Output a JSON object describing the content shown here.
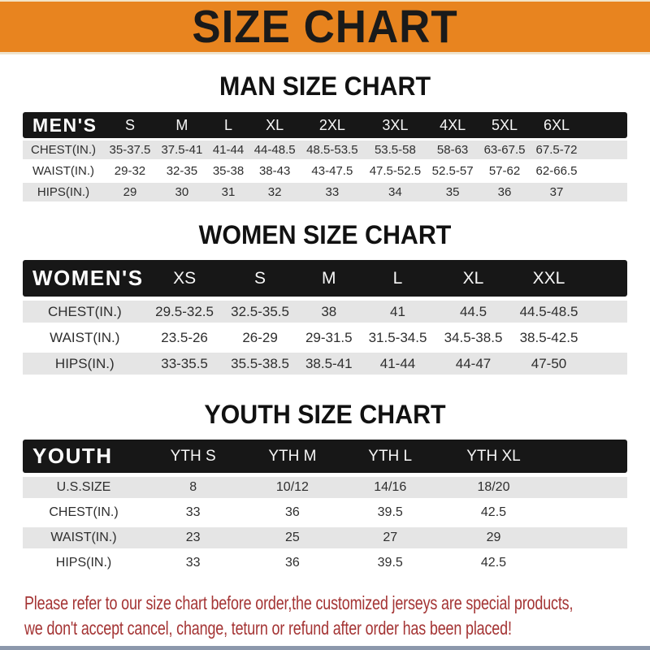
{
  "banner": {
    "title": "SIZE CHART",
    "background_color": "#E8841F",
    "title_color": "#1A1A1A"
  },
  "sections": [
    {
      "heading": "MAN SIZE CHART",
      "header_label": "MEN'S",
      "columns": [
        "S",
        "M",
        "L",
        "XL",
        "2XL",
        "3XL",
        "4XL",
        "5XL",
        "6XL"
      ],
      "rows": [
        {
          "label": "CHEST(IN.)",
          "values": [
            "35-37.5",
            "37.5-41",
            "41-44",
            "44-48.5",
            "48.5-53.5",
            "53.5-58",
            "58-63",
            "63-67.5",
            "67.5-72"
          ]
        },
        {
          "label": "WAIST(IN.)",
          "values": [
            "29-32",
            "32-35",
            "35-38",
            "38-43",
            "43-47.5",
            "47.5-52.5",
            "52.5-57",
            "57-62",
            "62-66.5"
          ]
        },
        {
          "label": "HIPS(IN.)",
          "values": [
            "29",
            "30",
            "31",
            "32",
            "33",
            "34",
            "35",
            "36",
            "37"
          ]
        }
      ]
    },
    {
      "heading": "WOMEN SIZE CHART",
      "header_label": "WOMEN'S",
      "columns": [
        "XS",
        "S",
        "M",
        "L",
        "XL",
        "XXL"
      ],
      "rows": [
        {
          "label": "CHEST(IN.)",
          "values": [
            "29.5-32.5",
            "32.5-35.5",
            "38",
            "41",
            "44.5",
            "44.5-48.5"
          ]
        },
        {
          "label": "WAIST(IN.)",
          "values": [
            "23.5-26",
            "26-29",
            "29-31.5",
            "31.5-34.5",
            "34.5-38.5",
            "38.5-42.5"
          ]
        },
        {
          "label": "HIPS(IN.)",
          "values": [
            "33-35.5",
            "35.5-38.5",
            "38.5-41",
            "41-44",
            "44-47",
            "47-50"
          ]
        }
      ]
    },
    {
      "heading": "YOUTH SIZE CHART",
      "header_label": "YOUTH",
      "columns": [
        "YTH S",
        "YTH M",
        "YTH L",
        "YTH XL"
      ],
      "rows": [
        {
          "label": "U.S.SIZE",
          "values": [
            "8",
            "10/12",
            "14/16",
            "18/20"
          ]
        },
        {
          "label": "CHEST(IN.)",
          "values": [
            "33",
            "36",
            "39.5",
            "42.5"
          ]
        },
        {
          "label": "WAIST(IN.)",
          "values": [
            "23",
            "25",
            "27",
            "29"
          ]
        },
        {
          "label": "HIPS(IN.)",
          "values": [
            "33",
            "36",
            "39.5",
            "42.5"
          ]
        }
      ]
    }
  ],
  "notice": {
    "line1": "Please refer to our size chart before order,the customized jerseys are special products,",
    "line2": "we don't accept cancel, change, teturn or refund after order has been placed!",
    "text_color": "#A43434"
  },
  "colors": {
    "header_bar": "#171717",
    "header_text": "#FFFFFF",
    "row_stripe": "#E5E5E5",
    "row_text": "#2E2E2E",
    "bottom_edge": "#8C98AC"
  }
}
